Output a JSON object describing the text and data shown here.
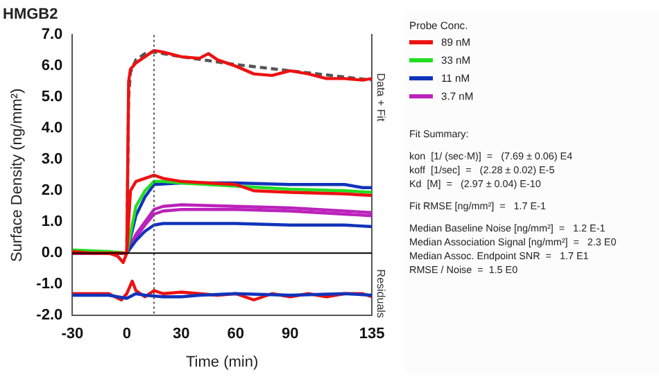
{
  "chart_data": {
    "type": "line",
    "title": "HMGB2",
    "xlabel": "Time (min)",
    "ylabel": "Surface Density (ng/mm²)",
    "legend_title": "Probe Conc.",
    "legend": "right",
    "grid": false,
    "marker": "none",
    "line_style": "solid",
    "xlim": [
      -30,
      135
    ],
    "xticks": [
      -30,
      0,
      30,
      60,
      90,
      135
    ],
    "ylim": [
      -2,
      7
    ],
    "yticks": [
      {
        "value": -2,
        "label": "-2.0"
      },
      {
        "value": -1,
        "label": "-1.0"
      },
      {
        "value": 0,
        "label": "0.0"
      },
      {
        "value": 1,
        "label": "1.0"
      },
      {
        "value": 2,
        "label": "2.0"
      },
      {
        "value": 3,
        "label": "3.0"
      },
      {
        "value": 4,
        "label": "4.0"
      },
      {
        "value": 5,
        "label": "5.0"
      },
      {
        "value": 6,
        "label": "6.0"
      },
      {
        "value": 7,
        "label": "7.0"
      }
    ],
    "ref_lines": [
      {
        "axis": "x",
        "value": 15,
        "color": "#555555",
        "line_style": "dotted"
      },
      {
        "axis": "y",
        "value": 0,
        "color": "#000000",
        "line_style": "solid"
      }
    ],
    "series": [
      {
        "name": "89 nM",
        "color": "#ee1111",
        "x": [
          -30,
          -20,
          -10,
          -5,
          -2,
          0,
          1,
          2,
          5,
          10,
          15,
          20,
          30,
          40,
          45,
          50,
          60,
          70,
          80,
          90,
          100,
          110,
          120,
          130,
          135
        ],
        "values": [
          0.05,
          0.0,
          0.0,
          -0.1,
          -0.3,
          0.0,
          5.5,
          5.9,
          6.1,
          6.3,
          6.5,
          6.45,
          6.3,
          6.25,
          6.4,
          6.2,
          6.0,
          5.75,
          5.7,
          5.85,
          5.75,
          5.6,
          5.6,
          5.55,
          5.6
        ]
      },
      {
        "color": "#ee1111",
        "x": [
          -30,
          -10,
          0,
          2,
          5,
          10,
          15,
          20,
          30,
          60,
          70,
          90,
          120,
          135
        ],
        "values": [
          0.0,
          0.0,
          0.0,
          2.0,
          2.3,
          2.4,
          2.5,
          2.4,
          2.3,
          2.2,
          2.0,
          1.95,
          1.9,
          1.85
        ]
      },
      {
        "name": "33 nM",
        "color": "#22dd22",
        "x": [
          -30,
          -10,
          0,
          5,
          10,
          15,
          20,
          30,
          60,
          90,
          120,
          135
        ],
        "values": [
          0.1,
          0.05,
          0.0,
          1.5,
          2.0,
          2.3,
          2.3,
          2.25,
          2.15,
          2.05,
          2.0,
          1.95
        ]
      },
      {
        "name": "11 nM",
        "color": "#1133bb",
        "x": [
          -30,
          -10,
          0,
          5,
          10,
          15,
          30,
          60,
          90,
          110,
          120,
          130,
          135
        ],
        "values": [
          0.0,
          0.0,
          0.0,
          1.2,
          1.8,
          2.2,
          2.25,
          2.25,
          2.2,
          2.2,
          2.2,
          2.1,
          2.1
        ]
      },
      {
        "color": "#1133bb",
        "x": [
          -30,
          -10,
          0,
          5,
          10,
          15,
          20,
          60,
          90,
          120,
          135
        ],
        "values": [
          0.0,
          0.0,
          0.0,
          0.4,
          0.7,
          0.9,
          0.95,
          0.95,
          0.9,
          0.9,
          0.85
        ]
      },
      {
        "name": "3.7 nM",
        "color": "#bb22bb",
        "x": [
          -30,
          -10,
          0,
          5,
          10,
          15,
          20,
          30,
          60,
          90,
          120,
          135
        ],
        "values": [
          0.0,
          0.0,
          0.0,
          0.6,
          1.0,
          1.4,
          1.5,
          1.55,
          1.5,
          1.45,
          1.35,
          1.3
        ]
      },
      {
        "color": "#bb22bb",
        "x": [
          0,
          5,
          10,
          15,
          20,
          30,
          60,
          90,
          120,
          135
        ],
        "values": [
          0.0,
          0.5,
          0.9,
          1.25,
          1.35,
          1.4,
          1.4,
          1.35,
          1.25,
          1.2
        ]
      },
      {
        "color": "#555555",
        "line_style": "dashed",
        "x": [
          0,
          1,
          2,
          5,
          10,
          15,
          30,
          60,
          90,
          120,
          135
        ],
        "values": [
          0.0,
          5.0,
          5.8,
          6.2,
          6.4,
          6.45,
          6.3,
          6.05,
          5.85,
          5.65,
          5.55
        ]
      },
      {
        "color": "#1133bb",
        "x": [
          -30,
          -10,
          0,
          5,
          10,
          20,
          30,
          40,
          60,
          90,
          120,
          135
        ],
        "values": [
          -1.35,
          -1.35,
          -1.45,
          -1.3,
          -1.35,
          -1.4,
          -1.4,
          -1.35,
          -1.3,
          -1.35,
          -1.3,
          -1.35
        ]
      },
      {
        "color": "#ee1111",
        "x": [
          -30,
          -10,
          -3,
          0,
          3,
          5,
          10,
          15,
          20,
          30,
          40,
          50,
          60,
          70,
          80,
          90,
          100,
          110,
          120,
          130,
          135
        ],
        "values": [
          -1.3,
          -1.3,
          -1.5,
          -1.3,
          -0.9,
          -1.2,
          -1.4,
          -1.2,
          -1.3,
          -1.25,
          -1.3,
          -1.35,
          -1.3,
          -1.5,
          -1.3,
          -1.4,
          -1.3,
          -1.4,
          -1.3,
          -1.3,
          -1.4
        ]
      }
    ],
    "annotations": [
      "Data + Fit",
      "Residuals",
      "Fit Summary:",
      "kon  [1/ (sec·M)]  =   (7.69 ± 0.06) E4",
      "koff  [1/sec]  =   (2.28 ± 0.02) E-5",
      "Kd  [M]  =   (2.97 ± 0.04) E-10",
      "Fit RMSE [ng/mm²]  =   1.7 E-1",
      "Median Baseline Noise [ng/mm²]  =   1.2 E-1",
      "Median Association Signal [ng/mm²]  =   2.3 E0",
      "Median Assoc. Endpoint SNR  =   1.7 E1",
      "RMSE / Noise  =  1.5 E0"
    ]
  }
}
